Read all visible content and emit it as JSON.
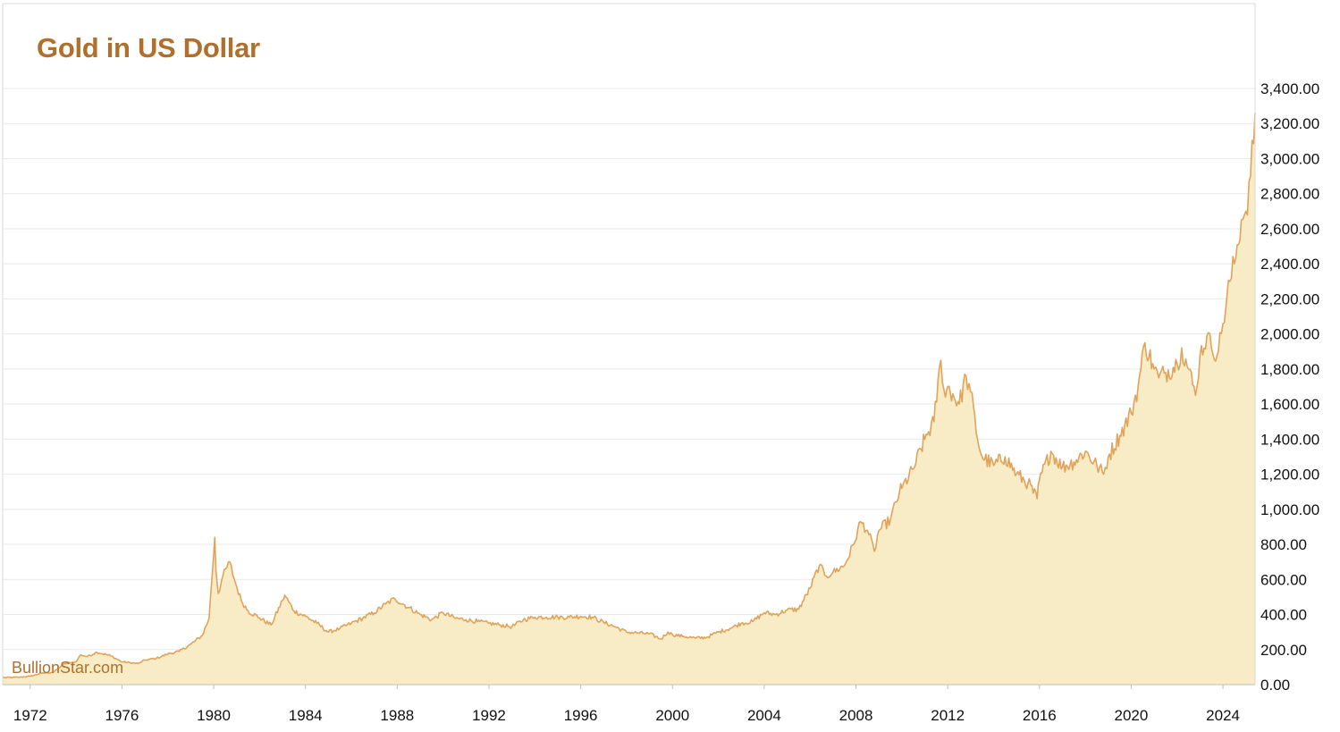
{
  "chart_data": {
    "type": "area",
    "title": "Gold in US Dollar",
    "watermark": "BullionStar.com",
    "xlabel": "",
    "ylabel": "",
    "x_range": [
      1970.8,
      2025.4
    ],
    "ylim": [
      0,
      3400
    ],
    "x_ticks": [
      1972,
      1976,
      1980,
      1984,
      1988,
      1992,
      1996,
      2000,
      2004,
      2008,
      2012,
      2016,
      2020,
      2024
    ],
    "x_tick_labels": [
      "1972",
      "1976",
      "1980",
      "1984",
      "1988",
      "1992",
      "1996",
      "2000",
      "2004",
      "2008",
      "2012",
      "2016",
      "2020",
      "2024"
    ],
    "y_ticks": [
      0,
      200,
      400,
      600,
      800,
      1000,
      1200,
      1400,
      1600,
      1800,
      2000,
      2200,
      2400,
      2600,
      2800,
      3000,
      3200,
      3400
    ],
    "y_tick_labels": [
      "0.00",
      "200.00",
      "400.00",
      "600.00",
      "800.00",
      "1,000.00",
      "1,200.00",
      "1,400.00",
      "1,600.00",
      "1,800.00",
      "2,000.00",
      "2,200.00",
      "2,400.00",
      "2,600.00",
      "2,800.00",
      "3,000.00",
      "3,200.00",
      "3,400.00"
    ],
    "grid": true,
    "y_axis_position": "right",
    "line_color": "#e0a35a",
    "fill_color": "#f7ecc6",
    "series": [
      {
        "x": [
          1970.8,
          1971.5,
          1972.0,
          1972.5,
          1973.0,
          1973.5,
          1974.0,
          1974.2,
          1974.5,
          1974.9,
          1975.5,
          1976.0,
          1976.7,
          1977.0,
          1977.5,
          1978.0,
          1978.5,
          1979.0,
          1979.5,
          1979.8,
          1980.05,
          1980.1,
          1980.2,
          1980.4,
          1980.7,
          1980.9,
          1981.2,
          1981.5,
          1982.0,
          1982.5,
          1983.0,
          1983.1,
          1983.5,
          1984.0,
          1984.5,
          1985.0,
          1985.5,
          1986.0,
          1986.5,
          1987.0,
          1987.5,
          1987.9,
          1988.5,
          1989.0,
          1989.5,
          1990.0,
          1990.5,
          1991.0,
          1991.5,
          1992.0,
          1992.5,
          1993.0,
          1993.5,
          1994.0,
          1994.5,
          1995.0,
          1995.5,
          1996.0,
          1996.5,
          1997.0,
          1997.5,
          1998.0,
          1998.5,
          1999.0,
          1999.5,
          1999.8,
          2000.0,
          2000.5,
          2001.0,
          2001.5,
          2002.0,
          2002.5,
          2003.0,
          2003.5,
          2004.0,
          2004.5,
          2005.0,
          2005.5,
          2006.0,
          2006.4,
          2006.7,
          2007.0,
          2007.5,
          2007.9,
          2008.2,
          2008.5,
          2008.8,
          2009.0,
          2009.5,
          2009.9,
          2010.0,
          2010.5,
          2011.0,
          2011.4,
          2011.7,
          2011.9,
          2012.0,
          2012.5,
          2012.8,
          2013.0,
          2013.3,
          2013.5,
          2014.0,
          2014.5,
          2015.0,
          2015.5,
          2015.9,
          2016.0,
          2016.5,
          2017.0,
          2017.5,
          2018.0,
          2018.5,
          2018.8,
          2019.0,
          2019.5,
          2020.0,
          2020.3,
          2020.6,
          2021.0,
          2021.2,
          2021.5,
          2022.0,
          2022.2,
          2022.5,
          2022.8,
          2023.0,
          2023.3,
          2023.5,
          2023.8,
          2024.0,
          2024.3,
          2024.5,
          2024.8,
          2025.0,
          2025.2,
          2025.4
        ],
        "values": [
          40,
          42,
          48,
          65,
          70,
          120,
          130,
          170,
          160,
          185,
          165,
          130,
          120,
          140,
          150,
          175,
          190,
          230,
          280,
          380,
          840,
          650,
          520,
          620,
          700,
          600,
          480,
          420,
          380,
          340,
          480,
          510,
          420,
          390,
          350,
          300,
          320,
          350,
          380,
          410,
          460,
          490,
          440,
          400,
          370,
          410,
          380,
          370,
          360,
          350,
          340,
          330,
          370,
          385,
          385,
          385,
          385,
          390,
          385,
          355,
          330,
          300,
          295,
          290,
          260,
          300,
          285,
          275,
          265,
          270,
          300,
          320,
          350,
          360,
          410,
          400,
          425,
          430,
          550,
          680,
          620,
          640,
          680,
          800,
          930,
          880,
          760,
          880,
          940,
          1100,
          1120,
          1230,
          1400,
          1500,
          1850,
          1640,
          1700,
          1600,
          1760,
          1670,
          1400,
          1300,
          1250,
          1300,
          1200,
          1150,
          1060,
          1170,
          1330,
          1240,
          1270,
          1330,
          1250,
          1200,
          1300,
          1420,
          1550,
          1700,
          1950,
          1800,
          1750,
          1780,
          1830,
          1920,
          1800,
          1650,
          1880,
          1990,
          1920,
          1900,
          2060,
          2300,
          2400,
          2650,
          2700,
          2900,
          3260
        ]
      }
    ]
  }
}
